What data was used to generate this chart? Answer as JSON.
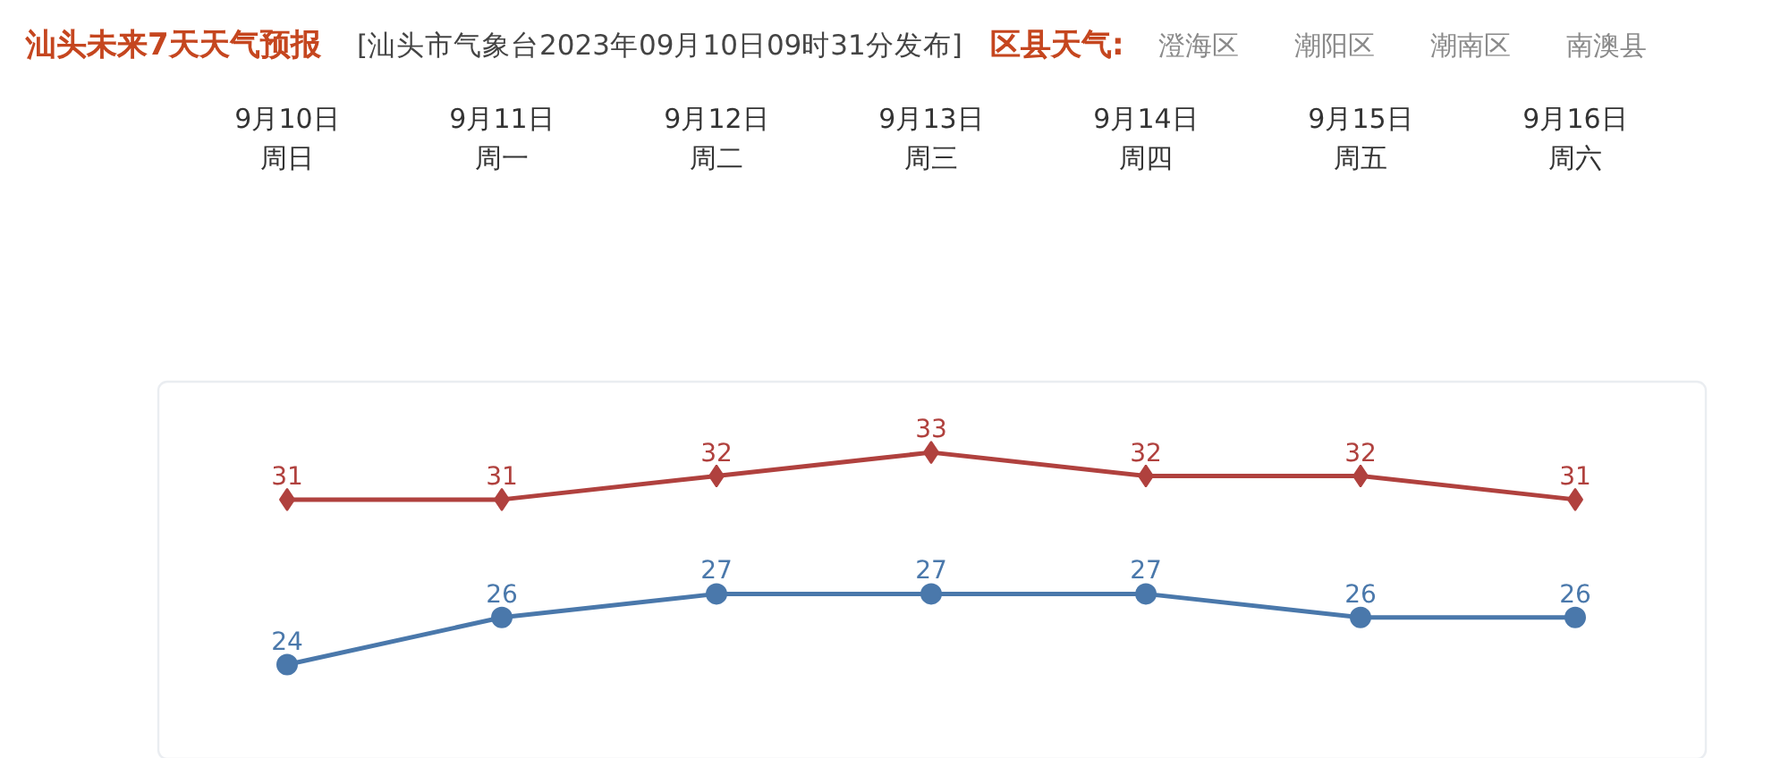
{
  "chart_data": {
    "type": "line",
    "title": "汕头未来7天天气预报",
    "subtitle": "[汕头市气象台2023年09月10日09时31分发布]",
    "categories": [
      "9月10日",
      "9月11日",
      "9月12日",
      "9月13日",
      "9月14日",
      "9月15日",
      "9月16日"
    ],
    "series": [
      {
        "color": "#b0413e",
        "marker": "diamond",
        "values": [
          31,
          31,
          32,
          33,
          32,
          32,
          31
        ]
      },
      {
        "color": "#4a78ab",
        "marker": "circle",
        "values": [
          24,
          26,
          27,
          27,
          27,
          26,
          26
        ]
      }
    ],
    "ylim": [
      20,
      36
    ],
    "data_labels": true,
    "tick_labels": "x",
    "line_style": "solid",
    "annotations": [
      "周日",
      "周一",
      "周二",
      "周三",
      "周四",
      "周五",
      "周六",
      "区县天气:",
      "澄海区",
      "潮阳区",
      "潮南区",
      "南澳县"
    ]
  }
}
